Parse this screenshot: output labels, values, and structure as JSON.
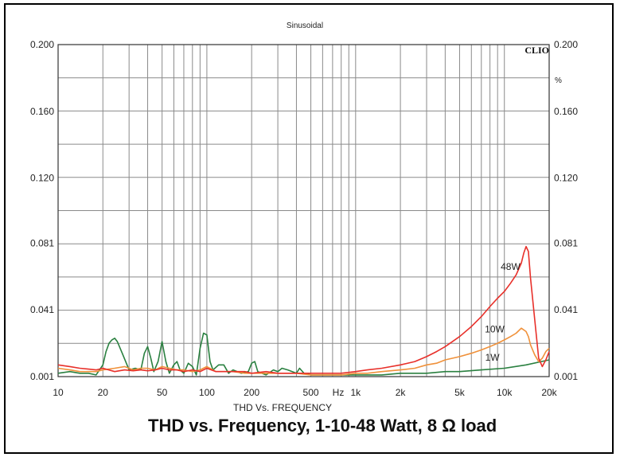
{
  "caption": "THD vs. Frequency, 1-10-48 Watt, 8 Ω load",
  "chart_data": {
    "type": "line",
    "title": "Sinusoidal",
    "xlabel": "THD Vs. FREQUENCY",
    "brand": "CLIO",
    "right_unit": "%",
    "xscale": "log",
    "xlim": [
      10,
      20000
    ],
    "ylim": [
      0.001,
      0.2
    ],
    "x_ticks": [
      10,
      20,
      50,
      100,
      200,
      500,
      1000,
      2000,
      5000,
      10000,
      20000
    ],
    "x_tick_labels": [
      "10",
      "20",
      "50",
      "100",
      "200",
      "500",
      "1k",
      "2k",
      "5k",
      "10k",
      "20k"
    ],
    "hz_label": "Hz",
    "y_ticks": [
      0.001,
      0.041,
      0.081,
      0.12,
      0.16,
      0.2
    ],
    "y_tick_labels": [
      "0.001",
      "0.041",
      "0.081",
      "0.120",
      "0.160",
      "0.200"
    ],
    "grid": true,
    "series": [
      {
        "name": "48W",
        "color": "#e8302a",
        "label": "48W",
        "label_pos": [
          11000,
          0.065
        ],
        "x": [
          10,
          12,
          14,
          16,
          18,
          20,
          24,
          28,
          32,
          36,
          40,
          45,
          50,
          56,
          63,
          70,
          80,
          90,
          100,
          115,
          130,
          150,
          180,
          200,
          250,
          300,
          400,
          500,
          600,
          700,
          800,
          1000,
          1200,
          1500,
          2000,
          2500,
          3000,
          3500,
          4000,
          5000,
          6000,
          7000,
          8000,
          9000,
          10000,
          11000,
          12000,
          13000,
          13500,
          14000,
          14500,
          15000,
          16000,
          17000,
          18000,
          19000,
          20000
        ],
        "y": [
          0.008,
          0.007,
          0.006,
          0.0055,
          0.005,
          0.006,
          0.004,
          0.005,
          0.0045,
          0.005,
          0.0045,
          0.005,
          0.006,
          0.005,
          0.005,
          0.004,
          0.005,
          0.004,
          0.006,
          0.004,
          0.004,
          0.004,
          0.004,
          0.003,
          0.004,
          0.003,
          0.003,
          0.003,
          0.003,
          0.003,
          0.003,
          0.004,
          0.005,
          0.006,
          0.008,
          0.01,
          0.013,
          0.016,
          0.019,
          0.025,
          0.031,
          0.037,
          0.043,
          0.048,
          0.052,
          0.057,
          0.062,
          0.069,
          0.075,
          0.079,
          0.076,
          0.06,
          0.035,
          0.012,
          0.007,
          0.011,
          0.016
        ]
      },
      {
        "name": "10W",
        "color": "#f0913a",
        "label": "10W",
        "label_pos": [
          8600,
          0.0275
        ],
        "x": [
          10,
          12,
          14,
          16,
          18,
          20,
          24,
          28,
          32,
          36,
          40,
          45,
          50,
          56,
          63,
          70,
          80,
          90,
          100,
          115,
          130,
          150,
          180,
          200,
          250,
          300,
          400,
          500,
          600,
          700,
          800,
          1000,
          1200,
          1500,
          2000,
          2500,
          3000,
          3500,
          4000,
          5000,
          6000,
          7000,
          8000,
          9000,
          10000,
          11000,
          12000,
          13000,
          14000,
          14500,
          15000,
          16000,
          17000,
          18000,
          19000,
          20000
        ],
        "y": [
          0.006,
          0.005,
          0.004,
          0.004,
          0.004,
          0.005,
          0.006,
          0.007,
          0.005,
          0.006,
          0.006,
          0.005,
          0.007,
          0.006,
          0.005,
          0.005,
          0.004,
          0.005,
          0.007,
          0.004,
          0.004,
          0.004,
          0.003,
          0.003,
          0.003,
          0.003,
          0.003,
          0.002,
          0.002,
          0.002,
          0.002,
          0.003,
          0.003,
          0.004,
          0.005,
          0.006,
          0.008,
          0.009,
          0.011,
          0.013,
          0.015,
          0.017,
          0.019,
          0.021,
          0.023,
          0.025,
          0.027,
          0.03,
          0.028,
          0.025,
          0.02,
          0.014,
          0.01,
          0.012,
          0.016,
          0.018
        ]
      },
      {
        "name": "1W",
        "color": "#2a8040",
        "label": "1W",
        "label_pos": [
          8300,
          0.0105
        ],
        "x": [
          10,
          12,
          14,
          16,
          18,
          20,
          21,
          22,
          23,
          24,
          25,
          27,
          30,
          33,
          36,
          38,
          40,
          42,
          44,
          47,
          50,
          53,
          56,
          60,
          63,
          66,
          70,
          75,
          80,
          85,
          90,
          95,
          100,
          105,
          110,
          120,
          130,
          140,
          150,
          170,
          190,
          200,
          210,
          220,
          250,
          280,
          300,
          320,
          350,
          400,
          420,
          450,
          500,
          600,
          700,
          800,
          1000,
          1200,
          1500,
          2000,
          3000,
          4000,
          5000,
          7000,
          10000,
          14000,
          20000
        ],
        "y": [
          0.003,
          0.004,
          0.003,
          0.003,
          0.002,
          0.008,
          0.016,
          0.021,
          0.023,
          0.024,
          0.022,
          0.015,
          0.005,
          0.006,
          0.005,
          0.015,
          0.019,
          0.012,
          0.004,
          0.01,
          0.022,
          0.01,
          0.003,
          0.008,
          0.01,
          0.005,
          0.003,
          0.009,
          0.007,
          0.002,
          0.018,
          0.027,
          0.026,
          0.01,
          0.005,
          0.008,
          0.008,
          0.003,
          0.005,
          0.003,
          0.004,
          0.009,
          0.01,
          0.004,
          0.002,
          0.005,
          0.004,
          0.006,
          0.005,
          0.003,
          0.006,
          0.003,
          0.002,
          0.002,
          0.002,
          0.002,
          0.002,
          0.002,
          0.002,
          0.003,
          0.003,
          0.004,
          0.004,
          0.005,
          0.006,
          0.008,
          0.011
        ]
      }
    ]
  }
}
